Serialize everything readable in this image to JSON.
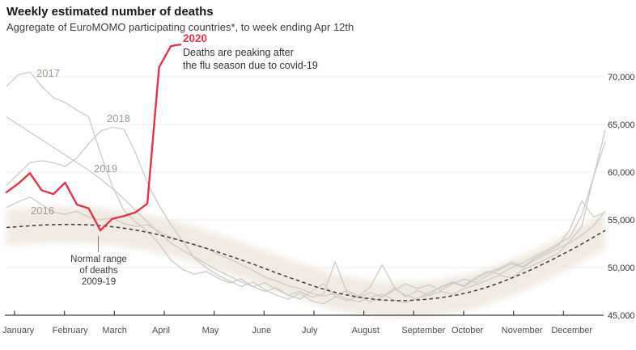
{
  "header": {
    "title": "Weekly estimated number of deaths",
    "subtitle": "Aggregate of EuroMOMO participating countries*, to week ending Apr 12th"
  },
  "chart_data": {
    "type": "line",
    "title": "Weekly estimated number of deaths",
    "subtitle": "Aggregate of EuroMOMO participating countries*, to week ending Apr 12th",
    "x_unit": "week of year (1-52)",
    "y_axis": {
      "min": 45000,
      "max": 70000,
      "ticks": [
        {
          "value": 45000,
          "label": "45,000"
        },
        {
          "value": 50000,
          "label": "50,000"
        },
        {
          "value": 55000,
          "label": "55,000"
        },
        {
          "value": 60000,
          "label": "60,000"
        },
        {
          "value": 65000,
          "label": "65,000"
        },
        {
          "value": 70000,
          "label": "70,000"
        }
      ]
    },
    "x_axis": {
      "months": [
        "January",
        "February",
        "March",
        "April",
        "May",
        "June",
        "July",
        "August",
        "September",
        "October",
        "November",
        "December"
      ]
    },
    "colors": {
      "highlight": "#e4344c",
      "history_line": "#ccccc5",
      "band_fill": "#efe8df",
      "dashed_line": "#3a3a3a",
      "grid_line": "#ececea",
      "axis_line": "#3c3c3c"
    },
    "normal_range": {
      "label_lines": [
        "Normal range",
        "of deaths",
        "2009-19"
      ],
      "half_width": 1900,
      "center": {
        "weeks": [
          1,
          5,
          9,
          13,
          17,
          21,
          25,
          29,
          33,
          37,
          41,
          45,
          49,
          52
        ],
        "values": [
          54200,
          54500,
          54400,
          53700,
          52400,
          50800,
          49000,
          47400,
          46600,
          46700,
          47600,
          49400,
          51800,
          53900
        ]
      }
    },
    "series": [
      {
        "name": "2016",
        "role": "history",
        "values": [
          56300,
          56900,
          57400,
          56600,
          55800,
          55600,
          55900,
          55300,
          55000,
          55200,
          54600,
          54300,
          54500,
          53800,
          53200,
          52800,
          52400,
          52000,
          51400,
          50900,
          50300,
          49700,
          49000,
          48600,
          48100,
          47800,
          47300,
          47000,
          47300,
          46700,
          46400,
          46900,
          47200,
          46600,
          46300,
          46800,
          47100,
          47500,
          47200,
          47800,
          48200,
          48700,
          49200,
          48900,
          49800,
          50300,
          50900,
          51500,
          52800,
          54300,
          59500,
          64400
        ]
      },
      {
        "name": "2017",
        "role": "history",
        "values": [
          69000,
          70200,
          70500,
          69000,
          67800,
          67300,
          66500,
          65800,
          62000,
          58600,
          56000,
          54800,
          53800,
          52500,
          50800,
          49800,
          49300,
          49600,
          48900,
          48400,
          48800,
          48000,
          47500,
          47900,
          47100,
          46700,
          47500,
          48300,
          47000,
          46500,
          47000,
          46400,
          46900,
          47800,
          47100,
          46700,
          47400,
          47900,
          48400,
          48000,
          48800,
          49500,
          49900,
          50600,
          50100,
          51000,
          51600,
          52300,
          54000,
          57000,
          55300,
          55800
        ]
      },
      {
        "name": "2018",
        "role": "history",
        "values": [
          58600,
          59800,
          61000,
          61200,
          61000,
          60600,
          61500,
          63000,
          64300,
          64700,
          64500,
          62000,
          58900,
          56500,
          54500,
          52800,
          51000,
          50000,
          49200,
          48600,
          48000,
          48500,
          47700,
          47100,
          46700,
          47300,
          46500,
          46200,
          46900,
          47600,
          47000,
          48000,
          50300,
          48000,
          46900,
          47600,
          47100,
          48000,
          48500,
          48100,
          49000,
          49600,
          49300,
          50000,
          50500,
          51200,
          51800,
          52500,
          53200,
          55500,
          59500,
          63200
        ]
      },
      {
        "name": "2019",
        "role": "history",
        "values": [
          65800,
          65000,
          64200,
          63400,
          62600,
          61800,
          61000,
          60200,
          59300,
          58300,
          57200,
          56000,
          54800,
          53600,
          52600,
          51800,
          51100,
          50400,
          49700,
          49100,
          48500,
          48000,
          48400,
          47700,
          47100,
          47500,
          46900,
          47200,
          50600,
          47400,
          46800,
          47400,
          46900,
          47600,
          48300,
          47800,
          48200,
          47600,
          48300,
          48800,
          48400,
          49200,
          49800,
          50400,
          50000,
          50800,
          51400,
          52000,
          52600,
          53400,
          54400,
          55900
        ]
      },
      {
        "name": "2020",
        "role": "highlight",
        "values": [
          57900,
          58800,
          59900,
          58100,
          57700,
          58900,
          56600,
          56200,
          53900,
          55100,
          55400,
          55800,
          56700,
          71000,
          73200
        ]
      }
    ],
    "annotations": {
      "y2020": {
        "title": "2020",
        "lines": [
          "Deaths are peaking after",
          "the flu season due to covid-19"
        ]
      }
    }
  }
}
